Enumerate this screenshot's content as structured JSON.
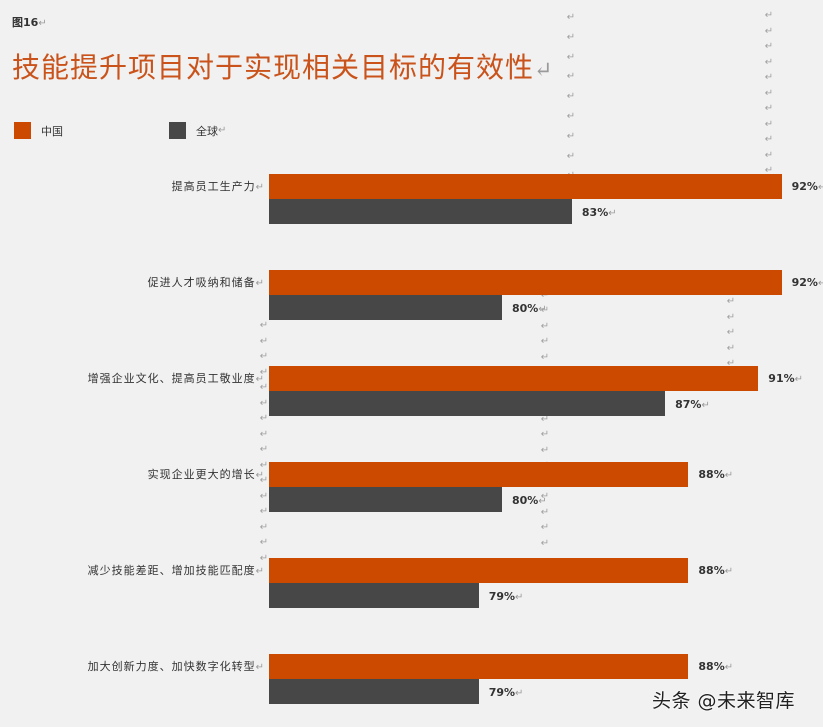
{
  "figure_label": "图16",
  "title": "技能提升项目对于实现相关目标的有效性",
  "paragraph_mark": "↵",
  "legend": [
    {
      "label": "中国",
      "color": "#cc4a00"
    },
    {
      "label": "全球",
      "color": "#474747"
    }
  ],
  "watermark": "头条 @未来智库",
  "chart_data": {
    "type": "bar",
    "orientation": "horizontal",
    "title": "技能提升项目对于实现相关目标的有效性",
    "categories": [
      "提高员工生产力",
      "促进人才吸纳和储备",
      "增强企业文化、提高员工敬业度",
      "实现企业更大的增长",
      "减少技能差距、增加技能匹配度",
      "加大创新力度、加快数字化转型"
    ],
    "series": [
      {
        "name": "中国",
        "color": "#cc4a00",
        "values": [
          92,
          92,
          91,
          88,
          88,
          88
        ]
      },
      {
        "name": "全球",
        "color": "#474747",
        "values": [
          83,
          80,
          87,
          80,
          79,
          79
        ]
      }
    ],
    "value_labels": {
      "中国": [
        "92%",
        "92%",
        "91%",
        "88%",
        "88%",
        "88%"
      ],
      "全球": [
        "83%",
        "80%",
        "87%",
        "80%",
        "79%",
        "79%"
      ]
    },
    "xlabel": "",
    "ylabel": "",
    "xlim": [
      70,
      92
    ],
    "grid": false,
    "legend_position": "top-left"
  }
}
